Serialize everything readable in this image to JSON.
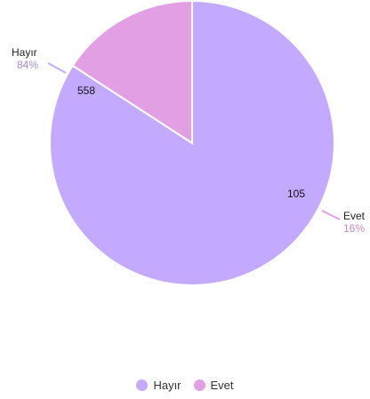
{
  "chart_data": {
    "type": "pie",
    "slices": [
      {
        "label": "Hayır",
        "value": 558,
        "percent": "84%",
        "color": "#c4aaff"
      },
      {
        "label": "Evet",
        "value": 105,
        "percent": "16%",
        "color": "#e39fe3"
      }
    ],
    "start_angle_deg": 90,
    "direction": "clockwise",
    "legend_position": "bottom-center"
  },
  "legend": [
    {
      "label": "Hayır",
      "color": "#c4aaff"
    },
    {
      "label": "Evet",
      "color": "#e39fe3"
    }
  ]
}
